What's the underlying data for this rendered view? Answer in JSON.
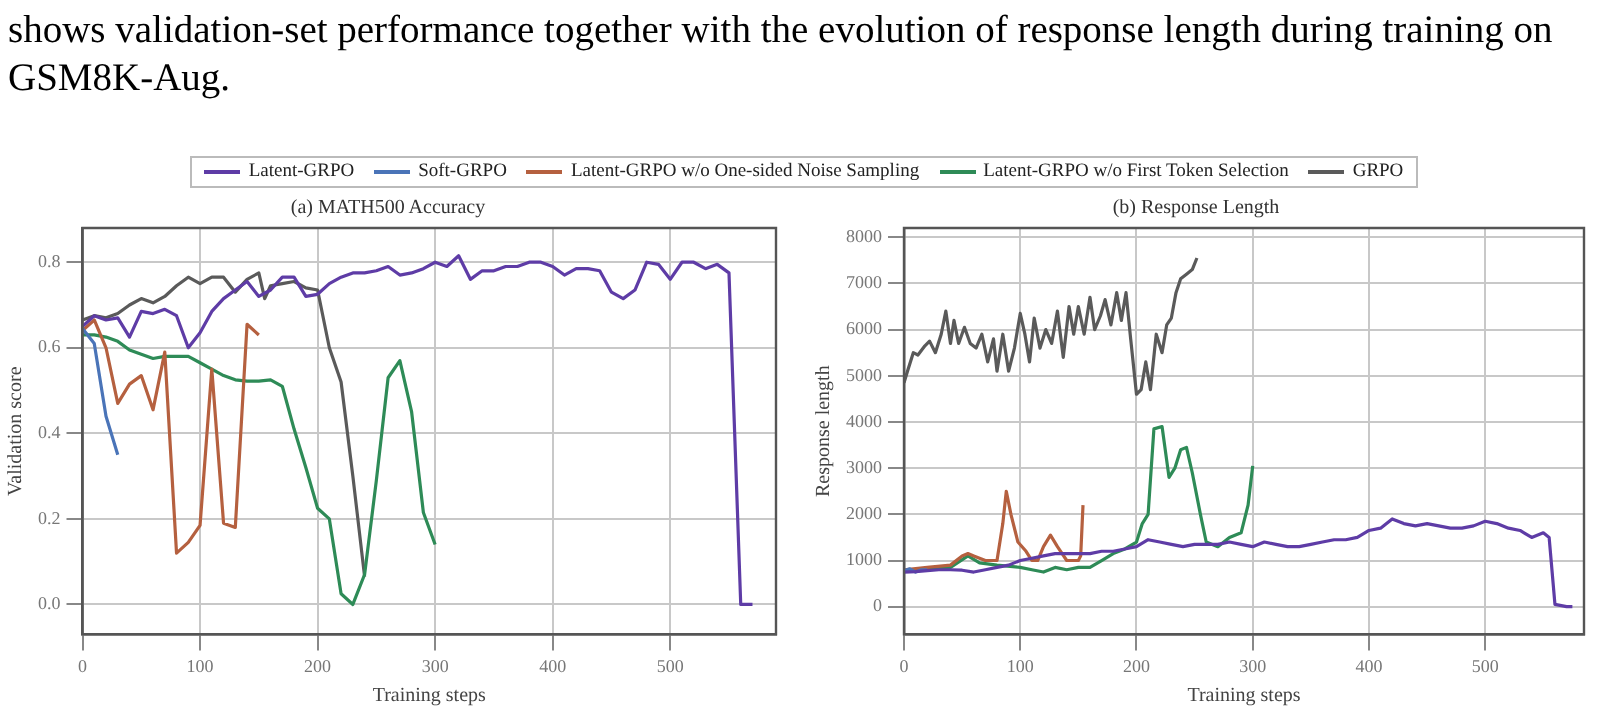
{
  "chart_data": [
    {
      "type": "line",
      "title": "(a) MATH500 Accuracy",
      "xlabel": "Training steps",
      "ylabel": "Validation score",
      "annotations": [
        "shows validation-set performance together with the evolution of response length during training on GSM8K-Aug."
      ],
      "xlim": [
        0,
        590
      ],
      "xticks": [
        0,
        100,
        200,
        300,
        400,
        500
      ],
      "ylim": [
        -0.07,
        0.88
      ],
      "yticks": [
        {
          "value": 0.0,
          "label": "0.0"
        },
        {
          "value": 0.2,
          "label": "0.2"
        },
        {
          "value": 0.4,
          "label": "0.4"
        },
        {
          "value": 0.6,
          "label": "0.6"
        },
        {
          "value": 0.8,
          "label": "0.8"
        }
      ],
      "grid": true,
      "legend": "top",
      "line_style": "solid",
      "marker": "none",
      "series": [
        {
          "name": "Latent-GRPO",
          "color": "#5e3ca6",
          "x": [
            0,
            10,
            20,
            30,
            40,
            50,
            60,
            70,
            80,
            90,
            100,
            110,
            120,
            130,
            140,
            150,
            160,
            170,
            180,
            190,
            200,
            210,
            220,
            230,
            240,
            250,
            260,
            270,
            280,
            290,
            300,
            310,
            320,
            330,
            340,
            350,
            360,
            370,
            380,
            390,
            400,
            410,
            420,
            430,
            440,
            450,
            460,
            470,
            480,
            490,
            500,
            510,
            520,
            530,
            540,
            550,
            560,
            570
          ],
          "values": [
            0.65,
            0.675,
            0.665,
            0.67,
            0.625,
            0.685,
            0.68,
            0.69,
            0.675,
            0.6,
            0.635,
            0.685,
            0.715,
            0.735,
            0.755,
            0.72,
            0.735,
            0.765,
            0.765,
            0.72,
            0.725,
            0.75,
            0.765,
            0.775,
            0.775,
            0.78,
            0.79,
            0.77,
            0.775,
            0.785,
            0.8,
            0.79,
            0.815,
            0.76,
            0.78,
            0.78,
            0.79,
            0.79,
            0.8,
            0.8,
            0.79,
            0.77,
            0.785,
            0.785,
            0.78,
            0.73,
            0.715,
            0.735,
            0.8,
            0.795,
            0.76,
            0.8,
            0.8,
            0.785,
            0.795,
            0.775,
            0.0,
            0.0
          ]
        },
        {
          "name": "Soft-GRPO",
          "color": "#4a74b8",
          "x": [
            0,
            10,
            20,
            30
          ],
          "values": [
            0.645,
            0.61,
            0.44,
            0.35
          ]
        },
        {
          "name": "Latent-GRPO w/o One-sided Noise Sampling",
          "color": "#b5603f",
          "x": [
            0,
            10,
            20,
            30,
            40,
            50,
            60,
            70,
            80,
            90,
            100,
            110,
            120,
            130,
            140,
            150
          ],
          "values": [
            0.64,
            0.665,
            0.6,
            0.47,
            0.515,
            0.535,
            0.455,
            0.59,
            0.12,
            0.145,
            0.185,
            0.55,
            0.19,
            0.18,
            0.655,
            0.63
          ]
        },
        {
          "name": "Latent-GRPO w/o First Token Selection",
          "color": "#2e8b57",
          "x": [
            0,
            10,
            20,
            30,
            40,
            50,
            60,
            70,
            80,
            90,
            100,
            110,
            120,
            130,
            140,
            150,
            160,
            170,
            180,
            190,
            200,
            210,
            220,
            230,
            240,
            250,
            260,
            270,
            280,
            290,
            300
          ],
          "values": [
            0.63,
            0.63,
            0.625,
            0.615,
            0.595,
            0.585,
            0.575,
            0.58,
            0.58,
            0.58,
            0.565,
            0.55,
            0.535,
            0.525,
            0.522,
            0.522,
            0.525,
            0.51,
            0.41,
            0.32,
            0.225,
            0.2,
            0.025,
            0.0,
            0.07,
            0.29,
            0.53,
            0.57,
            0.45,
            0.215,
            0.14
          ]
        },
        {
          "name": "GRPO",
          "color": "#5a5a5a",
          "x": [
            0,
            10,
            20,
            30,
            40,
            50,
            60,
            70,
            80,
            90,
            100,
            110,
            120,
            130,
            140,
            150,
            155,
            160,
            170,
            180,
            190,
            200,
            210,
            220,
            230,
            240
          ],
          "values": [
            0.665,
            0.675,
            0.67,
            0.68,
            0.7,
            0.715,
            0.705,
            0.72,
            0.745,
            0.765,
            0.75,
            0.765,
            0.765,
            0.73,
            0.76,
            0.775,
            0.715,
            0.745,
            0.75,
            0.755,
            0.74,
            0.735,
            0.6,
            0.52,
            0.3,
            0.065
          ]
        }
      ]
    },
    {
      "type": "line",
      "title": "(b) Response Length",
      "xlabel": "Training steps",
      "ylabel": "Response length",
      "xlim": [
        0,
        585
      ],
      "xticks": [
        0,
        100,
        200,
        300,
        400,
        500
      ],
      "ylim": [
        -600,
        8200
      ],
      "yticks": [
        0,
        1000,
        2000,
        3000,
        4000,
        5000,
        6000,
        7000,
        8000
      ],
      "grid": true,
      "line_style": "solid",
      "marker": "none",
      "series": [
        {
          "color": "#5e3ca6",
          "x": [
            0,
            10,
            20,
            30,
            40,
            50,
            60,
            70,
            80,
            90,
            100,
            110,
            120,
            130,
            140,
            150,
            160,
            170,
            180,
            190,
            200,
            210,
            220,
            230,
            240,
            250,
            260,
            270,
            280,
            290,
            300,
            310,
            320,
            330,
            340,
            350,
            360,
            370,
            380,
            390,
            400,
            410,
            420,
            430,
            440,
            450,
            460,
            470,
            480,
            490,
            500,
            510,
            520,
            530,
            540,
            550,
            555,
            560,
            570,
            575
          ],
          "values": [
            750,
            760,
            780,
            800,
            800,
            790,
            750,
            800,
            850,
            900,
            1000,
            1050,
            1100,
            1150,
            1150,
            1150,
            1150,
            1200,
            1200,
            1250,
            1300,
            1450,
            1400,
            1350,
            1300,
            1350,
            1350,
            1350,
            1400,
            1350,
            1300,
            1400,
            1350,
            1300,
            1300,
            1350,
            1400,
            1450,
            1450,
            1500,
            1650,
            1700,
            1900,
            1800,
            1750,
            1800,
            1750,
            1700,
            1700,
            1750,
            1850,
            1800,
            1700,
            1650,
            1500,
            1600,
            1500,
            50,
            0,
            0
          ]
        },
        {
          "color": "#4a74b8",
          "x": [
            0,
            5,
            10,
            15,
            20
          ],
          "values": [
            780,
            820,
            750,
            800,
            800
          ]
        },
        {
          "color": "#b5603f",
          "x": [
            0,
            20,
            40,
            50,
            55,
            60,
            70,
            80,
            85,
            88,
            92,
            98,
            105,
            110,
            115,
            120,
            126,
            132,
            140,
            150,
            152,
            154
          ],
          "values": [
            800,
            850,
            900,
            1100,
            1150,
            1100,
            1000,
            1000,
            1800,
            2500,
            2000,
            1400,
            1200,
            1000,
            1000,
            1300,
            1550,
            1300,
            1000,
            1000,
            1100,
            2200
          ]
        },
        {
          "color": "#2e8b57",
          "x": [
            0,
            20,
            40,
            55,
            65,
            80,
            100,
            110,
            120,
            130,
            140,
            150,
            160,
            170,
            180,
            190,
            200,
            205,
            210,
            215,
            222,
            228,
            233,
            238,
            243,
            248,
            255,
            260,
            270,
            280,
            290,
            296,
            300
          ],
          "values": [
            800,
            800,
            850,
            1100,
            950,
            900,
            850,
            800,
            750,
            850,
            800,
            850,
            850,
            1000,
            1150,
            1250,
            1400,
            1800,
            2000,
            3850,
            3900,
            2800,
            3000,
            3400,
            3450,
            2900,
            2000,
            1400,
            1300,
            1500,
            1600,
            2200,
            3050
          ]
        },
        {
          "color": "#5a5a5a",
          "x": [
            0,
            3,
            8,
            12,
            18,
            22,
            27,
            32,
            36,
            40,
            43,
            47,
            52,
            57,
            62,
            67,
            72,
            77,
            80,
            85,
            90,
            95,
            100,
            104,
            108,
            112,
            117,
            122,
            127,
            132,
            137,
            142,
            146,
            150,
            155,
            160,
            164,
            169,
            173,
            178,
            183,
            187,
            191,
            195,
            200,
            204,
            208,
            212,
            217,
            222,
            226,
            230,
            234,
            238,
            243,
            248,
            252
          ],
          "values": [
            4850,
            5100,
            5500,
            5450,
            5650,
            5750,
            5500,
            5900,
            6400,
            5700,
            6200,
            5700,
            6050,
            5700,
            5600,
            5900,
            5300,
            5800,
            5100,
            5900,
            5100,
            5600,
            6350,
            5900,
            5300,
            6250,
            5600,
            6000,
            5700,
            6400,
            5400,
            6500,
            5900,
            6500,
            5900,
            6700,
            6000,
            6300,
            6650,
            6100,
            6800,
            6200,
            6800,
            5800,
            4600,
            4700,
            5300,
            4700,
            5900,
            5500,
            6100,
            6250,
            6800,
            7100,
            7200,
            7300,
            7550
          ]
        }
      ]
    }
  ]
}
